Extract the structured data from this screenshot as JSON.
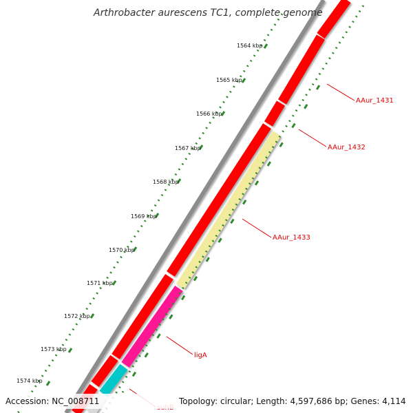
{
  "title": "Arthrobacter aurescens TC1, complete genome",
  "ticks": [
    "1564 kbp",
    "1565 kbp",
    "1566 kbp",
    "1567 kbp",
    "1568 kbp",
    "1569 kbp",
    "1570 kbp",
    "1571 kbp",
    "1572 kbp",
    "1573 kbp",
    "1574 kbp"
  ],
  "genes": [
    "AAur_1431",
    "AAur_1432",
    "AAur_1433",
    "ligA",
    "suhB"
  ],
  "footer": {
    "accession": "Accession: NC_008711",
    "summary": "Topology: circular; Length: 4,597,686 bp; Genes: 4,114"
  },
  "colors": {
    "cds": "#ff0000",
    "pseudo_yellow": "#f2eb9e",
    "magenta": "#ff1493",
    "cyan": "#00c8c8",
    "backbone": "#8c8c8c",
    "gc_dots": "#2d8a2d",
    "label_line": "#dd0000"
  }
}
